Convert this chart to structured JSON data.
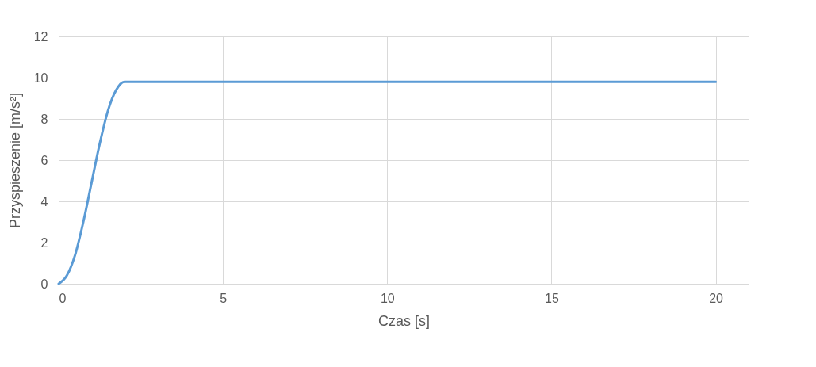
{
  "chart_data": {
    "type": "line",
    "xlabel": "Czas [s]",
    "ylabel": "Przyspieszenie [m/s²]",
    "x": [
      0,
      0.25,
      0.5,
      0.75,
      1,
      1.25,
      1.5,
      1.75,
      2,
      20
    ],
    "series": [
      {
        "color": "#5b9bd5",
        "values": [
          0,
          0.4,
          1.4,
          3.0,
          4.9,
          6.8,
          8.4,
          9.4,
          9.8,
          9.8
        ]
      }
    ],
    "xlim": [
      0,
      21
    ],
    "xticks": [
      0,
      5,
      10,
      15,
      20
    ],
    "ylim": [
      0,
      12
    ],
    "yticks": [
      0,
      2,
      4,
      6,
      8,
      10,
      12
    ],
    "grid": true,
    "marker": "none",
    "line_style": "solid"
  }
}
